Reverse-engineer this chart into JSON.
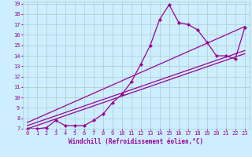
{
  "xlabel": "Windchill (Refroidissement éolien,°C)",
  "bg_color": "#cceeff",
  "line_color": "#990099",
  "grid_color": "#aacccc",
  "xlim": [
    -0.5,
    23.5
  ],
  "ylim": [
    7,
    19.2
  ],
  "xticks": [
    0,
    1,
    2,
    3,
    4,
    5,
    6,
    7,
    8,
    9,
    10,
    11,
    12,
    13,
    14,
    15,
    16,
    17,
    18,
    19,
    20,
    21,
    22,
    23
  ],
  "yticks": [
    7,
    8,
    9,
    10,
    11,
    12,
    13,
    14,
    15,
    16,
    17,
    18,
    19
  ],
  "line1_x": [
    0,
    1,
    2,
    3,
    4,
    5,
    6,
    7,
    8,
    9,
    10,
    11,
    12,
    13,
    14,
    15,
    16,
    17,
    18,
    19,
    20,
    21,
    22,
    23
  ],
  "line1_y": [
    7.0,
    7.0,
    7.1,
    7.8,
    7.3,
    7.3,
    7.3,
    7.8,
    8.4,
    9.5,
    10.3,
    11.5,
    13.2,
    15.0,
    17.5,
    18.9,
    17.2,
    17.0,
    16.5,
    15.3,
    14.0,
    14.0,
    13.7,
    16.7
  ],
  "line2_x": [
    0,
    23
  ],
  "line2_y": [
    7.0,
    14.2
  ],
  "line3_x": [
    0,
    23
  ],
  "line3_y": [
    7.3,
    14.5
  ],
  "line4_x": [
    0,
    23
  ],
  "line4_y": [
    7.6,
    16.8
  ],
  "marker": "D",
  "markersize": 2.2,
  "linewidth": 0.9,
  "tick_fontsize": 5.0,
  "xlabel_fontsize": 5.5
}
